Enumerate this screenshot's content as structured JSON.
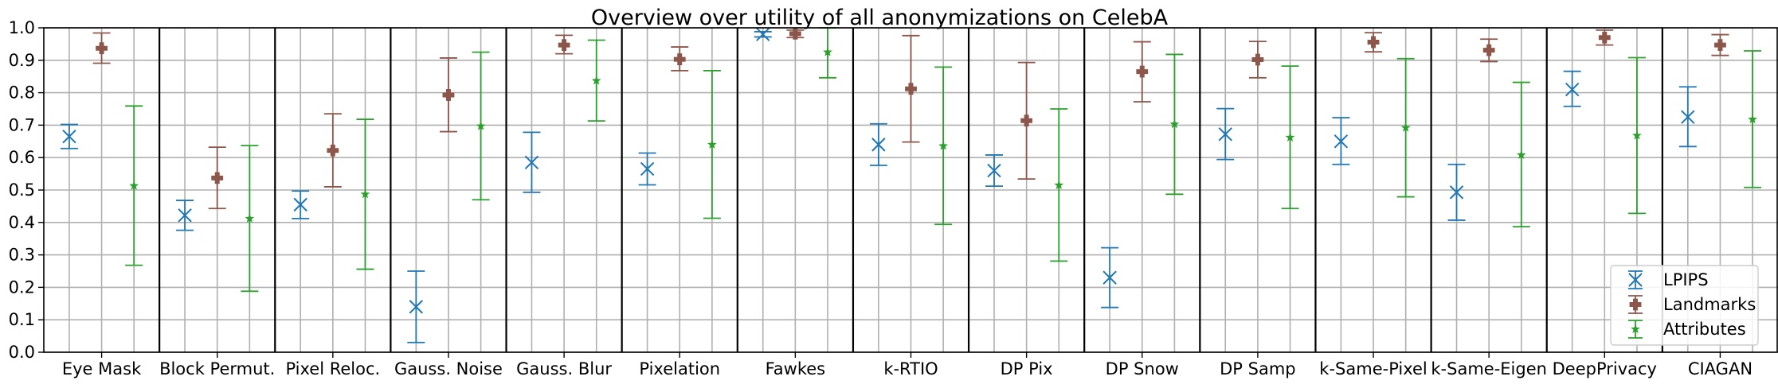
{
  "chart_data": {
    "type": "scatter",
    "title": "Overview over utility of all anonymizations on CelebA",
    "xlabel": "",
    "ylabel": "",
    "ylim": [
      0,
      1.0
    ],
    "yticks": [
      "0.0",
      "0.1",
      "0.2",
      "0.3",
      "0.4",
      "0.5",
      "0.6",
      "0.7",
      "0.8",
      "0.9",
      "1.0"
    ],
    "grid": true,
    "legend_position": "bottom-right",
    "categories": [
      "Eye Mask",
      "Block Permut.",
      "Pixel Reloc.",
      "Gauss. Noise",
      "Gauss. Blur",
      "Pixelation",
      "Fawkes",
      "k-RTIO",
      "DP Pix",
      "DP Snow",
      "DP Samp",
      "k-Same-Pixel",
      "k-Same-Eigen",
      "DeepPrivacy",
      "CIAGAN"
    ],
    "series": [
      {
        "name": "LPIPS",
        "color": "#1f77b4",
        "marker": "x",
        "values": [
          0.665,
          0.422,
          0.455,
          0.14,
          0.585,
          0.565,
          0.98,
          0.64,
          0.56,
          0.23,
          0.672,
          0.65,
          0.493,
          0.81,
          0.725
        ],
        "err_low": [
          0.628,
          0.376,
          0.412,
          0.03,
          0.493,
          0.516,
          0.972,
          0.576,
          0.512,
          0.138,
          0.594,
          0.579,
          0.407,
          0.758,
          0.634
        ],
        "err_high": [
          0.702,
          0.468,
          0.497,
          0.25,
          0.678,
          0.614,
          0.988,
          0.704,
          0.608,
          0.322,
          0.751,
          0.723,
          0.579,
          0.866,
          0.818
        ]
      },
      {
        "name": "Landmarks",
        "color": "#8c564b",
        "marker": "P",
        "values": [
          0.937,
          0.537,
          0.622,
          0.793,
          0.947,
          0.903,
          0.982,
          0.812,
          0.714,
          0.865,
          0.902,
          0.956,
          0.931,
          0.97,
          0.947
        ],
        "err_low": [
          0.891,
          0.443,
          0.51,
          0.68,
          0.92,
          0.868,
          0.97,
          0.648,
          0.534,
          0.772,
          0.846,
          0.926,
          0.896,
          0.947,
          0.915
        ],
        "err_high": [
          0.984,
          0.632,
          0.735,
          0.907,
          0.977,
          0.941,
          0.993,
          0.976,
          0.893,
          0.957,
          0.958,
          0.985,
          0.965,
          0.993,
          0.979
        ]
      },
      {
        "name": "Attributes",
        "color": "#2ca02c",
        "marker": "*",
        "values": [
          0.513,
          0.412,
          0.487,
          0.697,
          0.837,
          0.64,
          0.925,
          0.636,
          0.515,
          0.703,
          0.662,
          0.692,
          0.608,
          0.668,
          0.718
        ],
        "err_low": [
          0.268,
          0.188,
          0.256,
          0.47,
          0.713,
          0.413,
          0.846,
          0.394,
          0.281,
          0.487,
          0.443,
          0.479,
          0.387,
          0.428,
          0.508
        ],
        "err_high": [
          0.759,
          0.637,
          0.718,
          0.925,
          0.962,
          0.868,
          1.0,
          0.879,
          0.75,
          0.918,
          0.882,
          0.905,
          0.832,
          0.908,
          0.929
        ]
      }
    ]
  }
}
